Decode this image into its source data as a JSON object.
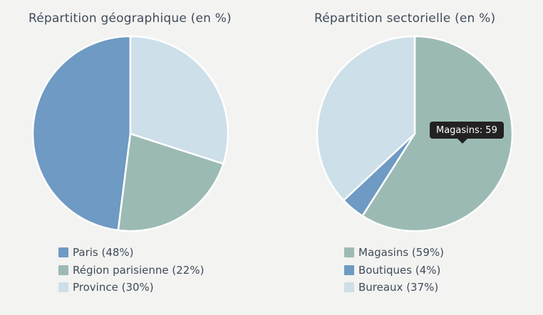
{
  "page": {
    "background": "#f3f3f1",
    "text_color": "#3f4b59"
  },
  "chart_data": [
    {
      "type": "pie",
      "title": "Répartition géographique (en %)",
      "unit": "%",
      "legend_position": "bottom-left",
      "direction": "counterclockwise",
      "start_angle_deg": 0,
      "series": [
        {
          "name": "Paris",
          "value": 48,
          "color": "#6e9ac3",
          "legend_label": "Paris (48%)"
        },
        {
          "name": "Région parisienne",
          "value": 22,
          "color": "#9cbab4",
          "legend_label": "Région parisienne (22%)"
        },
        {
          "name": "Province",
          "value": 30,
          "color": "#cddfe9",
          "legend_label": "Province (30%)"
        }
      ]
    },
    {
      "type": "pie",
      "title": "Répartition sectorielle (en %)",
      "unit": "%",
      "legend_position": "bottom-left",
      "direction": "clockwise",
      "start_angle_deg": 0,
      "series": [
        {
          "name": "Magasins",
          "value": 59,
          "color": "#9cbab4",
          "legend_label": "Magasins (59%)"
        },
        {
          "name": "Boutiques",
          "value": 4,
          "color": "#6e9ac3",
          "legend_label": "Boutiques (4%)"
        },
        {
          "name": "Bureaux",
          "value": 37,
          "color": "#cddfe9",
          "legend_label": "Bureaux (37%)"
        }
      ],
      "tooltip": {
        "text": "Magasins: 59",
        "background": "#222222",
        "text_color": "#ffffff"
      }
    }
  ]
}
